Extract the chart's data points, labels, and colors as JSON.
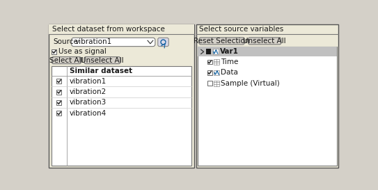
{
  "bg_color": "#d4d0c8",
  "panel_bg": "#ece9d8",
  "white": "#ffffff",
  "border_color": "#888888",
  "border_dark": "#444444",
  "selected_row_color": "#c0c0c0",
  "left_title": "Select dataset from workspace",
  "right_title": "Select source variables",
  "source_label": "Source",
  "source_value": "vibration1",
  "use_as_signal": "Use as signal",
  "select_all_btn": "Select All",
  "unselect_all_btn": "Unselect All",
  "reset_selection_btn": "Reset Selection",
  "right_unselect_btn": "Unselect All",
  "table_header": "Similar dataset",
  "datasets": [
    "vibration1",
    "vibration2",
    "vibration3",
    "vibration4"
  ],
  "datasets_checked": [
    true,
    true,
    true,
    true
  ],
  "var1_name": "Var1",
  "variables": [
    "Time",
    "Data",
    "Sample (Virtual)"
  ],
  "variables_checked": [
    true,
    true,
    false
  ],
  "variables_type": [
    "time",
    "data",
    "time"
  ],
  "text_color": "#1a1a1a",
  "blue_text": "#0000cc",
  "check_color": "#333333",
  "icon_blue": "#1060a0",
  "font_size": 7.5
}
